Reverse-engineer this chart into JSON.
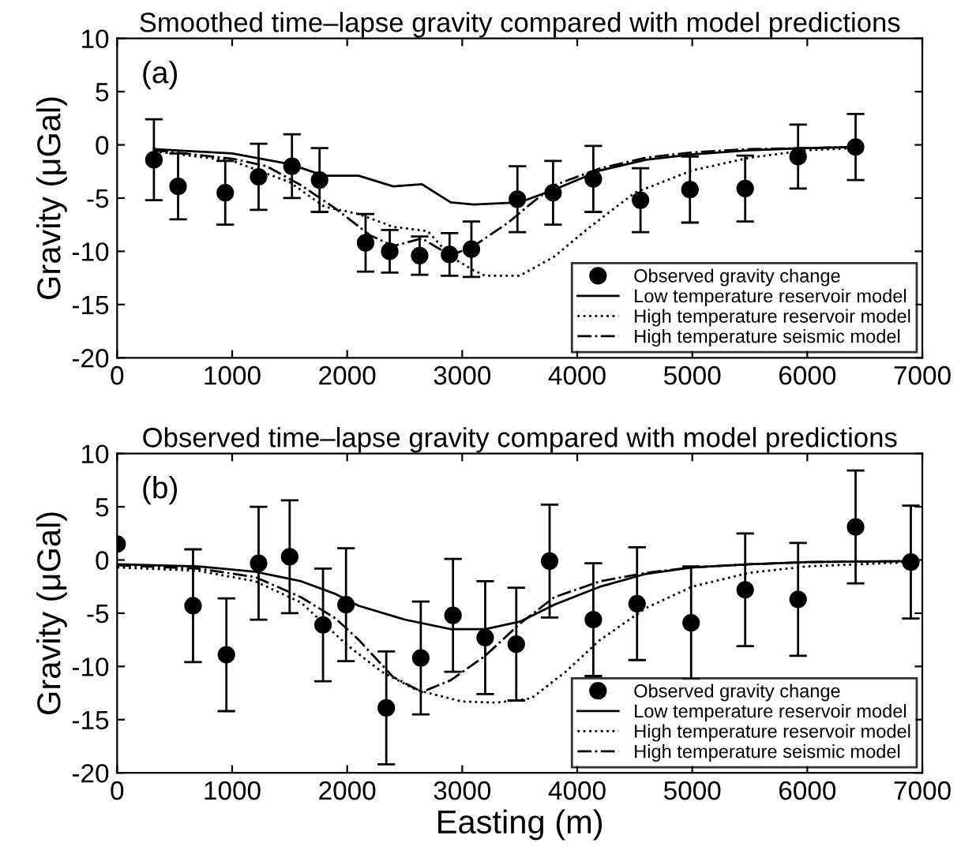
{
  "chart_data": [
    {
      "type": "line",
      "title": "Smoothed time–lapse gravity compared with model predictions",
      "ylabel": "Gravity (μGal)",
      "annotations": [
        "(a)"
      ],
      "xlim": [
        0,
        7000
      ],
      "xticks": [
        0,
        1000,
        2000,
        3000,
        4000,
        5000,
        6000,
        7000
      ],
      "ylim": [
        -20,
        10
      ],
      "yticks": [
        -20,
        -15,
        -10,
        -5,
        0,
        5,
        10
      ],
      "legend": "bottom right",
      "grid": false,
      "series": [
        {
          "name": "Observed gravity change",
          "type": "scatter",
          "marker": "circle",
          "color": "#000000",
          "x": [
            320,
            530,
            940,
            1230,
            1520,
            1760,
            2160,
            2370,
            2630,
            2890,
            3080,
            3480,
            3790,
            4140,
            4550,
            4980,
            5460,
            5920,
            6420
          ],
          "values": [
            -1.4,
            -3.9,
            -4.5,
            -3.0,
            -2.0,
            -3.3,
            -9.2,
            -10.0,
            -10.4,
            -10.3,
            -9.8,
            -5.1,
            -4.5,
            -3.2,
            -5.2,
            -4.2,
            -4.1,
            -1.1,
            -0.2
          ],
          "errors": [
            3.8,
            3.1,
            3.0,
            3.1,
            3.0,
            3.0,
            2.7,
            2.0,
            1.8,
            2.0,
            2.6,
            3.1,
            3.0,
            3.1,
            3.0,
            3.1,
            3.1,
            3.0,
            3.1
          ]
        },
        {
          "name": "Low temperature reservoir model",
          "type": "line",
          "line_style": "solid",
          "color": "#000000",
          "x": [
            320,
            1000,
            1500,
            1800,
            2100,
            2400,
            2650,
            2900,
            3100,
            3500,
            3800,
            4200,
            4600,
            5000,
            5500,
            6000,
            6420
          ],
          "values": [
            -0.4,
            -0.8,
            -1.8,
            -2.9,
            -2.9,
            -3.9,
            -3.7,
            -5.4,
            -5.6,
            -5.4,
            -4.2,
            -2.4,
            -1.4,
            -0.9,
            -0.5,
            -0.3,
            -0.2
          ]
        },
        {
          "name": "High temperature reservoir model",
          "type": "line",
          "line_style": "dotted",
          "color": "#000000",
          "x": [
            320,
            1000,
            1500,
            1800,
            2100,
            2400,
            2700,
            2900,
            3100,
            3200,
            3500,
            3800,
            4100,
            4500,
            5000,
            5500,
            6000,
            6420
          ],
          "values": [
            -0.6,
            -1.5,
            -3.5,
            -5.8,
            -6.5,
            -7.7,
            -8.1,
            -10.5,
            -11.8,
            -12.3,
            -12.3,
            -10.5,
            -7.8,
            -4.5,
            -2.4,
            -1.2,
            -0.5,
            -0.3
          ]
        },
        {
          "name": "High temperature seismic model",
          "type": "line",
          "line_style": "dashdot",
          "color": "#000000",
          "x": [
            320,
            1000,
            1300,
            1600,
            1900,
            2200,
            2400,
            2650,
            2900,
            3100,
            3400,
            3600,
            3800,
            4200,
            4600,
            5000,
            5500,
            6000,
            6420
          ],
          "values": [
            -0.5,
            -1.3,
            -2.0,
            -3.8,
            -6.0,
            -8.5,
            -9.5,
            -8.8,
            -10.4,
            -9.5,
            -7.3,
            -5.5,
            -3.8,
            -2.2,
            -1.2,
            -0.7,
            -0.4,
            -0.3,
            -0.2
          ]
        }
      ]
    },
    {
      "type": "line",
      "title": "Observed time–lapse gravity compared with model predictions",
      "xlabel": "Easting (m)",
      "ylabel": "Gravity (μGal)",
      "annotations": [
        "(b)"
      ],
      "xlim": [
        0,
        7000
      ],
      "xticks": [
        0,
        1000,
        2000,
        3000,
        4000,
        5000,
        6000,
        7000
      ],
      "ylim": [
        -20,
        10
      ],
      "yticks": [
        -20,
        -15,
        -10,
        -5,
        0,
        5,
        10
      ],
      "legend": "bottom right",
      "grid": false,
      "series": [
        {
          "name": "Observed gravity change",
          "type": "scatter",
          "marker": "circle",
          "color": "#000000",
          "x": [
            0,
            660,
            950,
            1230,
            1500,
            1790,
            1990,
            2340,
            2640,
            2920,
            3200,
            3470,
            3760,
            4140,
            4520,
            4990,
            5460,
            5920,
            6420,
            6900
          ],
          "values": [
            1.5,
            -4.3,
            -8.9,
            -0.3,
            0.3,
            -6.1,
            -4.2,
            -13.9,
            -9.2,
            -5.2,
            -7.3,
            -7.9,
            -0.1,
            -5.6,
            -4.1,
            -5.9,
            -2.8,
            -3.7,
            3.1,
            -0.2
          ],
          "errors": [
            null,
            5.3,
            5.3,
            5.3,
            5.3,
            5.3,
            5.3,
            5.3,
            5.3,
            5.3,
            5.3,
            5.3,
            5.3,
            5.3,
            5.3,
            5.3,
            5.3,
            5.3,
            5.3,
            5.3
          ]
        },
        {
          "name": "Low temperature reservoir model",
          "type": "line",
          "line_style": "solid",
          "color": "#000000",
          "x": [
            0,
            700,
            1200,
            1600,
            1900,
            2100,
            2500,
            2900,
            3200,
            3500,
            3800,
            4200,
            4600,
            5000,
            5500,
            6000,
            6900
          ],
          "values": [
            -0.4,
            -0.6,
            -1.1,
            -2.0,
            -3.2,
            -4.3,
            -5.6,
            -6.5,
            -6.5,
            -5.8,
            -4.2,
            -2.5,
            -1.3,
            -0.7,
            -0.4,
            -0.2,
            -0.1
          ]
        },
        {
          "name": "High temperature reservoir model",
          "type": "line",
          "line_style": "dotted",
          "color": "#000000",
          "x": [
            0,
            700,
            1200,
            1600,
            2000,
            2300,
            2600,
            3000,
            3300,
            3600,
            3900,
            4200,
            4600,
            5000,
            5500,
            6000,
            6900
          ],
          "values": [
            -0.7,
            -1.0,
            -2.0,
            -4.0,
            -8.0,
            -10.5,
            -12.2,
            -13.3,
            -13.4,
            -13.0,
            -10.5,
            -7.5,
            -4.5,
            -2.5,
            -1.2,
            -0.6,
            -0.2
          ]
        },
        {
          "name": "High temperature seismic model",
          "type": "line",
          "line_style": "dashdot",
          "color": "#000000",
          "x": [
            0,
            700,
            1200,
            1600,
            1900,
            2100,
            2400,
            2650,
            2900,
            3200,
            3500,
            3800,
            4200,
            4600,
            5000,
            5500,
            6000,
            6900
          ],
          "values": [
            -0.5,
            -0.8,
            -1.6,
            -3.5,
            -5.5,
            -7.5,
            -11.0,
            -12.4,
            -11.3,
            -9.0,
            -6.0,
            -3.5,
            -2.0,
            -1.2,
            -0.7,
            -0.4,
            -0.2,
            -0.1
          ]
        }
      ]
    }
  ]
}
